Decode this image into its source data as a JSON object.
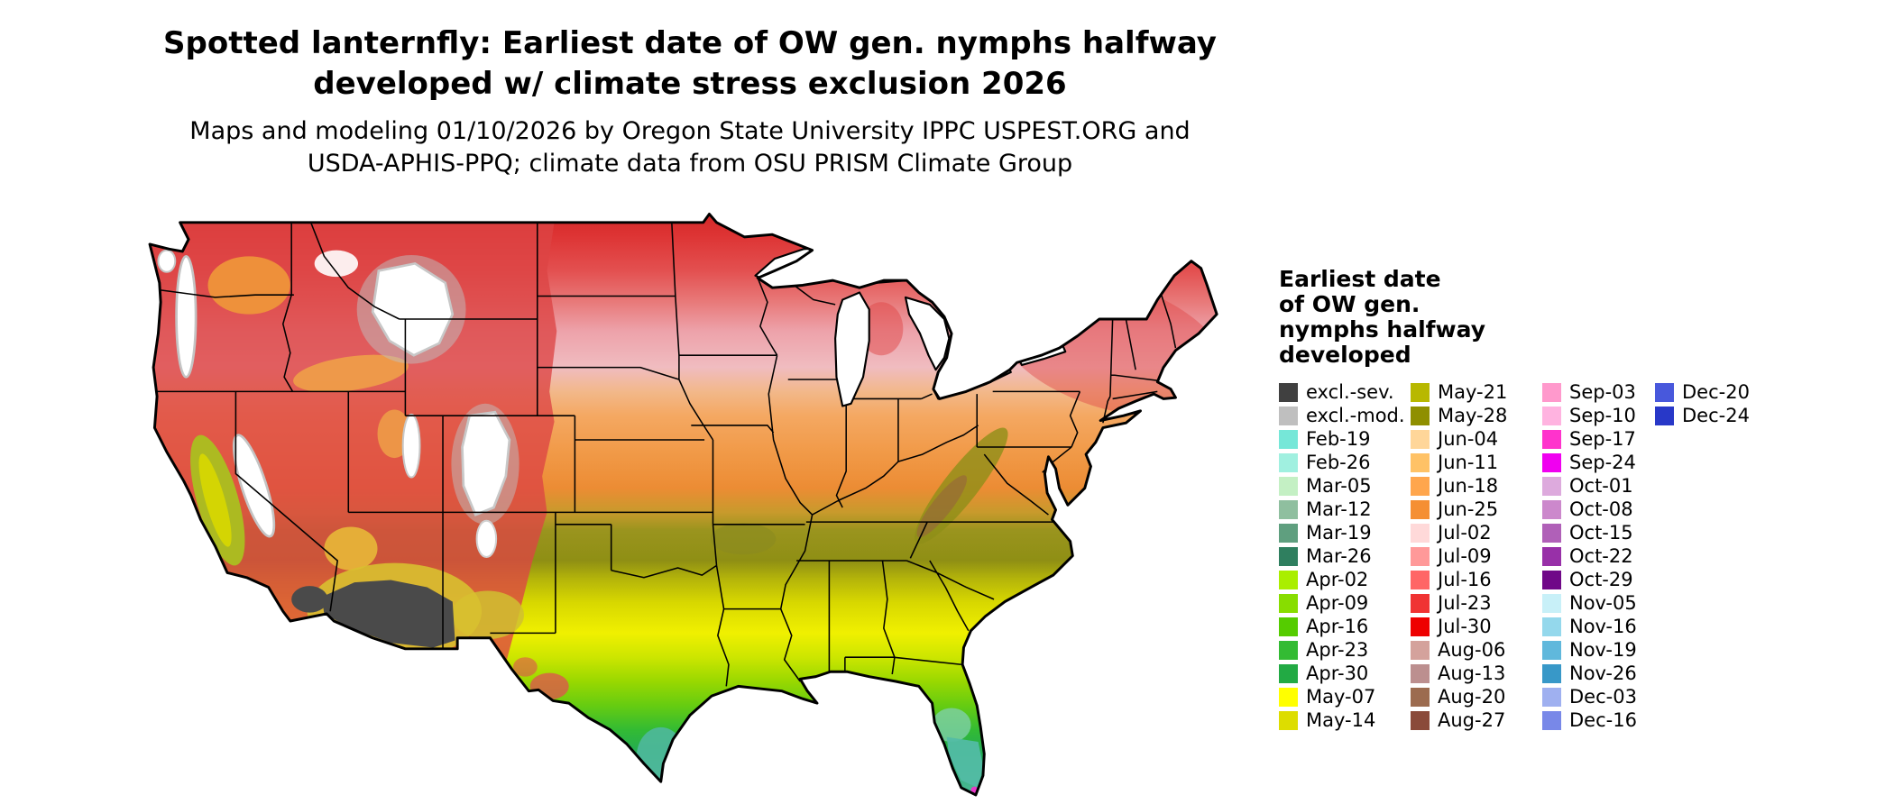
{
  "header": {
    "title_line1": "Spotted lanternfly: Earliest date of OW gen. nymphs halfway",
    "title_line2": "developed w/ climate stress exclusion 2026",
    "subtitle_line1": "Maps and modeling 01/10/2026 by Oregon State University IPPC USPEST.ORG and",
    "subtitle_line2": "USDA-APHIS-PPQ; climate data from OSU PRISM Climate Group"
  },
  "legend": {
    "title_lines": [
      "Earliest date",
      "of OW gen.",
      "nymphs halfway",
      "developed"
    ],
    "columns": [
      [
        {
          "label": "excl.-sev.",
          "color": "#404040"
        },
        {
          "label": "excl.-mod.",
          "color": "#bfbfbf"
        },
        {
          "label": "Feb-19",
          "color": "#76e7d8"
        },
        {
          "label": "Feb-26",
          "color": "#a0f0e0"
        },
        {
          "label": "Mar-05",
          "color": "#c4f0c4"
        },
        {
          "label": "Mar-12",
          "color": "#8fbf9f"
        },
        {
          "label": "Mar-19",
          "color": "#5f9f7f"
        },
        {
          "label": "Mar-26",
          "color": "#2f7f5f"
        },
        {
          "label": "Apr-02",
          "color": "#aaee00"
        },
        {
          "label": "Apr-09",
          "color": "#88dd00"
        },
        {
          "label": "Apr-16",
          "color": "#55cc00"
        },
        {
          "label": "Apr-23",
          "color": "#33bb33"
        },
        {
          "label": "Apr-30",
          "color": "#22aa44"
        },
        {
          "label": "May-07",
          "color": "#ffff00"
        },
        {
          "label": "May-14",
          "color": "#dddd00"
        }
      ],
      [
        {
          "label": "May-21",
          "color": "#b8b800"
        },
        {
          "label": "May-28",
          "color": "#8f8f00"
        },
        {
          "label": "Jun-04",
          "color": "#ffd699"
        },
        {
          "label": "Jun-11",
          "color": "#ffc266"
        },
        {
          "label": "Jun-18",
          "color": "#ffa64d"
        },
        {
          "label": "Jun-25",
          "color": "#f58f33"
        },
        {
          "label": "Jul-02",
          "color": "#ffd9d9"
        },
        {
          "label": "Jul-09",
          "color": "#ff9999"
        },
        {
          "label": "Jul-16",
          "color": "#ff6666"
        },
        {
          "label": "Jul-23",
          "color": "#f03333"
        },
        {
          "label": "Jul-30",
          "color": "#ee0000"
        },
        {
          "label": "Aug-06",
          "color": "#d4a29c"
        },
        {
          "label": "Aug-13",
          "color": "#bc8f8f"
        },
        {
          "label": "Aug-20",
          "color": "#9c6b4f"
        },
        {
          "label": "Aug-27",
          "color": "#8a4a3a"
        }
      ],
      [
        {
          "label": "Sep-03",
          "color": "#ff99cc"
        },
        {
          "label": "Sep-10",
          "color": "#ffb3e0"
        },
        {
          "label": "Sep-17",
          "color": "#ff33cc"
        },
        {
          "label": "Sep-24",
          "color": "#f000f0"
        },
        {
          "label": "Oct-01",
          "color": "#ddaadd"
        },
        {
          "label": "Oct-08",
          "color": "#cc88cc"
        },
        {
          "label": "Oct-15",
          "color": "#b060b8"
        },
        {
          "label": "Oct-22",
          "color": "#9830a8"
        },
        {
          "label": "Oct-29",
          "color": "#700888"
        },
        {
          "label": "Nov-05",
          "color": "#c8f0f8"
        },
        {
          "label": "Nov-16",
          "color": "#94d8ec"
        },
        {
          "label": "Nov-19",
          "color": "#60b8dc"
        },
        {
          "label": "Nov-26",
          "color": "#3898c8"
        },
        {
          "label": "Dec-03",
          "color": "#9fb0f0"
        },
        {
          "label": "Dec-16",
          "color": "#7888e8"
        }
      ],
      [
        {
          "label": "Dec-20",
          "color": "#4858dc"
        },
        {
          "label": "Dec-24",
          "color": "#2838c8"
        }
      ]
    ]
  }
}
